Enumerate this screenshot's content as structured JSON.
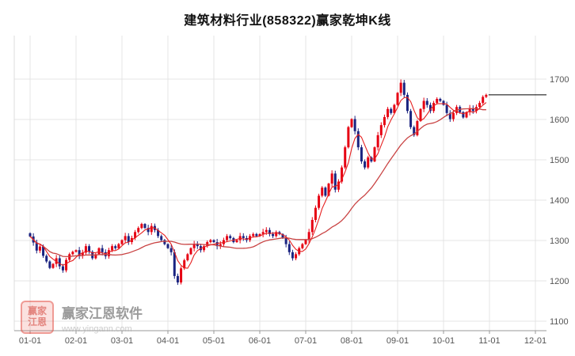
{
  "chart_data": {
    "type": "candlestick",
    "title": "建筑材料行业(858322)赢家乾坤K线",
    "x_tick_labels": [
      "01-01",
      "02-01",
      "03-01",
      "04-01",
      "05-01",
      "06-01",
      "07-01",
      "08-01",
      "09-01",
      "10-01",
      "11-01",
      "12-01"
    ],
    "y_ticks": [
      1100,
      1200,
      1300,
      1400,
      1500,
      1600,
      1700
    ],
    "ylim": [
      1100,
      1700
    ],
    "legend": "none",
    "grid": true,
    "candles_per_month": 14,
    "first_open": 1318,
    "closes": [
      1310,
      1295,
      1275,
      1285,
      1262,
      1248,
      1232,
      1242,
      1256,
      1236,
      1226,
      1252,
      1266,
      1272,
      1276,
      1262,
      1270,
      1286,
      1272,
      1256,
      1266,
      1281,
      1271,
      1261,
      1276,
      1286,
      1281,
      1291,
      1301,
      1311,
      1296,
      1306,
      1321,
      1331,
      1341,
      1331,
      1321,
      1336,
      1326,
      1311,
      1301,
      1291,
      1281,
      1271,
      1212,
      1196,
      1231,
      1251,
      1266,
      1281,
      1291,
      1286,
      1276,
      1286,
      1296,
      1301,
      1296,
      1286,
      1291,
      1301,
      1311,
      1306,
      1296,
      1301,
      1311,
      1306,
      1301,
      1311,
      1316,
      1311,
      1316,
      1321,
      1326,
      1316,
      1311,
      1321,
      1316,
      1306,
      1291,
      1271,
      1256,
      1266,
      1281,
      1291,
      1301,
      1321,
      1351,
      1381,
      1411,
      1431,
      1411,
      1441,
      1466,
      1426,
      1446,
      1481,
      1531,
      1581,
      1601,
      1571,
      1531,
      1496,
      1481,
      1506,
      1496,
      1531,
      1561,
      1586,
      1606,
      1626,
      1616,
      1636,
      1666,
      1691,
      1661,
      1621,
      1581,
      1561,
      1596,
      1626,
      1646,
      1636,
      1621,
      1641,
      1651,
      1646,
      1636,
      1616,
      1601,
      1616,
      1631,
      1618,
      1605,
      1618,
      1628,
      1621,
      1631,
      1641,
      1656,
      1661
    ],
    "last_price": 1661,
    "ma_fast_period": 5,
    "ma_slow_period": 25,
    "colors": {
      "up": "#e60012",
      "down": "#1a2380",
      "ma_fast": "#e62020",
      "ma_slow": "#c94343",
      "grid": "#e4e4e4",
      "axis": "#999999",
      "tick_label": "#555555",
      "last_price_line": "#000000"
    }
  },
  "watermark": {
    "logo_line1": "赢家",
    "logo_line2": "江恩",
    "brand": "赢家江恩软件",
    "url": "www.yingann.com"
  }
}
